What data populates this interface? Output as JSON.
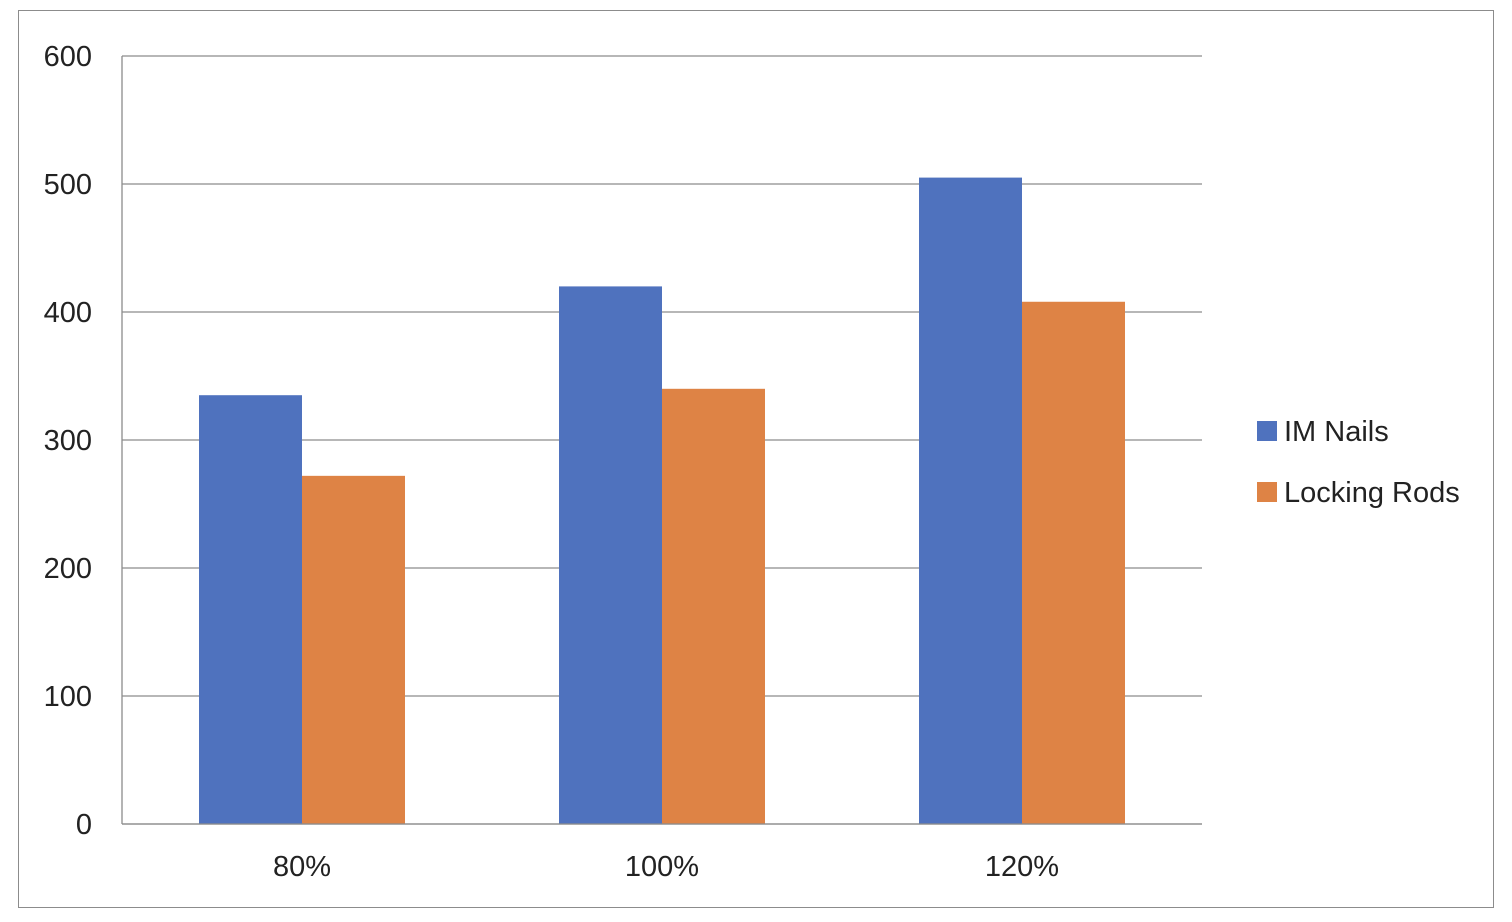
{
  "chart_data": {
    "type": "bar",
    "categories": [
      "80%",
      "100%",
      "120%"
    ],
    "series": [
      {
        "name": "IM Nails",
        "values": [
          335,
          420,
          505
        ],
        "color": "#4f72be"
      },
      {
        "name": "Locking Rods",
        "values": [
          272,
          340,
          408
        ],
        "color": "#de8345"
      }
    ],
    "title": "",
    "xlabel": "",
    "ylabel": "",
    "ylim": [
      0,
      600
    ],
    "yticks": [
      0,
      100,
      200,
      300,
      400,
      500,
      600
    ],
    "grid": true,
    "legend_position": "right"
  }
}
